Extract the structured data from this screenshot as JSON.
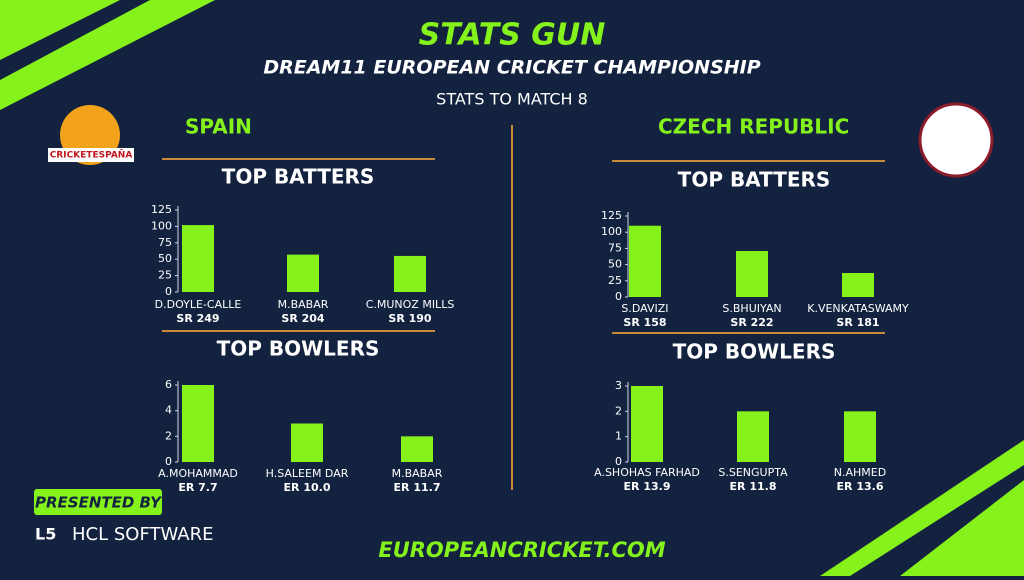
{
  "header": {
    "title": "STATS GUN",
    "subtitle": "DREAM11 EUROPEAN CRICKET CHAMPIONSHIP",
    "note": "STATS TO MATCH 8"
  },
  "teams": [
    "SPAIN",
    "CZECH REPUBLIC"
  ],
  "logo_text": "CRICKETESPAÑA",
  "footer": {
    "presented": "PRESENTED BY",
    "sponsor": "HCL SOFTWARE",
    "url": "EUROPEANCRICKET.COM"
  },
  "chart_data": [
    {
      "type": "bar",
      "title": "TOP BATTERS",
      "categories": [
        "D.DOYLE-CALLE",
        "M.BABAR",
        "C.MUNOZ MILLS"
      ],
      "sublabels": [
        "SR 249",
        "SR 204",
        "SR 190"
      ],
      "values": [
        102,
        57,
        55
      ],
      "color": "#86f21c",
      "ylim": [
        0,
        125
      ],
      "yticks": [
        0,
        25,
        50,
        75,
        100,
        125
      ]
    },
    {
      "type": "bar",
      "title": "TOP BOWLERS",
      "categories": [
        "A.MOHAMMAD",
        "H.SALEEM DAR",
        "M.BABAR"
      ],
      "sublabels": [
        "ER 7.7",
        "ER 10.0",
        "ER 11.7"
      ],
      "values": [
        6,
        3,
        2
      ],
      "color": "#86f21c",
      "ylim": [
        0,
        6
      ],
      "yticks": [
        0,
        2,
        4,
        6
      ]
    },
    {
      "type": "bar",
      "title": "TOP BATTERS",
      "categories": [
        "S.DAVIZI",
        "S.BHUIYAN",
        "K.VENKATASWAMY"
      ],
      "sublabels": [
        "SR 158",
        "SR 222",
        "SR 181"
      ],
      "values": [
        110,
        71,
        37
      ],
      "color": "#86f21c",
      "ylim": [
        0,
        125
      ],
      "yticks": [
        0,
        25,
        50,
        75,
        100,
        125
      ]
    },
    {
      "type": "bar",
      "title": "TOP BOWLERS",
      "categories": [
        "A.SHOHAS FARHAD",
        "S.SENGUPTA",
        "N.AHMED"
      ],
      "sublabels": [
        "ER 13.9",
        "ER 11.8",
        "ER 13.6"
      ],
      "values": [
        3,
        2,
        2
      ],
      "color": "#86f21c",
      "ylim": [
        0,
        3
      ],
      "yticks": [
        0,
        1,
        2,
        3
      ]
    }
  ]
}
